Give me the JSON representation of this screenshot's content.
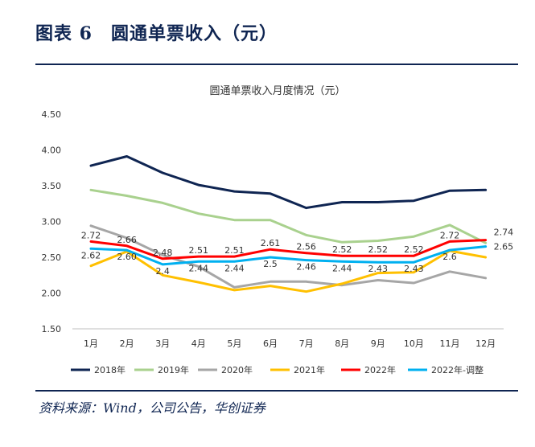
{
  "figure": {
    "title": "图表 6　圆通单票收入（元）",
    "source": "资料来源：Wind，公司公告，华创证券"
  },
  "chart_data": {
    "type": "line",
    "title": "圆通单票收入月度情况（元）",
    "xlabel": "",
    "ylabel": "",
    "categories": [
      "1月",
      "2月",
      "3月",
      "4月",
      "5月",
      "6月",
      "7月",
      "8月",
      "9月",
      "10月",
      "11月",
      "12月"
    ],
    "ylim": [
      1.5,
      4.5
    ],
    "yticks": [
      "1.50",
      "2.00",
      "2.50",
      "3.00",
      "3.50",
      "4.00",
      "4.50"
    ],
    "grid": false,
    "legend_position": "bottom",
    "series": [
      {
        "name": "2018年",
        "color": "#0f2552",
        "values": [
          3.78,
          3.91,
          3.68,
          3.51,
          3.42,
          3.39,
          3.19,
          3.27,
          3.27,
          3.29,
          3.43,
          3.44
        ]
      },
      {
        "name": "2019年",
        "color": "#a9d18e",
        "values": [
          3.44,
          3.36,
          3.26,
          3.11,
          3.02,
          3.02,
          2.81,
          2.71,
          2.73,
          2.79,
          2.95,
          2.7
        ]
      },
      {
        "name": "2020年",
        "color": "#a6a6a6",
        "values": [
          2.94,
          2.77,
          2.53,
          2.37,
          2.08,
          2.16,
          2.16,
          2.11,
          2.18,
          2.14,
          2.3,
          2.21
        ]
      },
      {
        "name": "2021年",
        "color": "#ffc000",
        "values": [
          2.38,
          2.58,
          2.25,
          2.15,
          2.04,
          2.1,
          2.02,
          2.13,
          2.28,
          2.29,
          2.59,
          2.5
        ]
      },
      {
        "name": "2022年",
        "color": "#ff0000",
        "values": [
          2.72,
          2.66,
          2.48,
          2.51,
          2.51,
          2.61,
          2.56,
          2.52,
          2.52,
          2.52,
          2.72,
          2.74
        ]
      },
      {
        "name": "2022年-调整",
        "color": "#00b0f0",
        "values": [
          2.62,
          2.6,
          2.4,
          2.44,
          2.44,
          2.5,
          2.46,
          2.44,
          2.43,
          2.43,
          2.6,
          2.65
        ]
      }
    ],
    "data_labels": [
      {
        "series": 4,
        "index": 0,
        "text": "2.72"
      },
      {
        "series": 4,
        "index": 1,
        "text": "2.66"
      },
      {
        "series": 4,
        "index": 2,
        "text": "2.48"
      },
      {
        "series": 4,
        "index": 3,
        "text": "2.51"
      },
      {
        "series": 4,
        "index": 4,
        "text": "2.51"
      },
      {
        "series": 4,
        "index": 5,
        "text": "2.61"
      },
      {
        "series": 4,
        "index": 6,
        "text": "2.56"
      },
      {
        "series": 4,
        "index": 7,
        "text": "2.52"
      },
      {
        "series": 4,
        "index": 8,
        "text": "2.52"
      },
      {
        "series": 4,
        "index": 9,
        "text": "2.52"
      },
      {
        "series": 4,
        "index": 10,
        "text": "2.72"
      },
      {
        "series": 4,
        "index": 11,
        "text": "2.74"
      },
      {
        "series": 5,
        "index": 0,
        "text": "2.62"
      },
      {
        "series": 5,
        "index": 1,
        "text": "2.60"
      },
      {
        "series": 5,
        "index": 2,
        "text": "2.4"
      },
      {
        "series": 5,
        "index": 3,
        "text": "2.44"
      },
      {
        "series": 5,
        "index": 4,
        "text": "2.44"
      },
      {
        "series": 5,
        "index": 5,
        "text": "2.5"
      },
      {
        "series": 5,
        "index": 6,
        "text": "2.46"
      },
      {
        "series": 5,
        "index": 7,
        "text": "2.44"
      },
      {
        "series": 5,
        "index": 8,
        "text": "2.43"
      },
      {
        "series": 5,
        "index": 9,
        "text": "2.43"
      },
      {
        "series": 5,
        "index": 10,
        "text": "2.6"
      },
      {
        "series": 5,
        "index": 11,
        "text": "2.65"
      }
    ]
  }
}
